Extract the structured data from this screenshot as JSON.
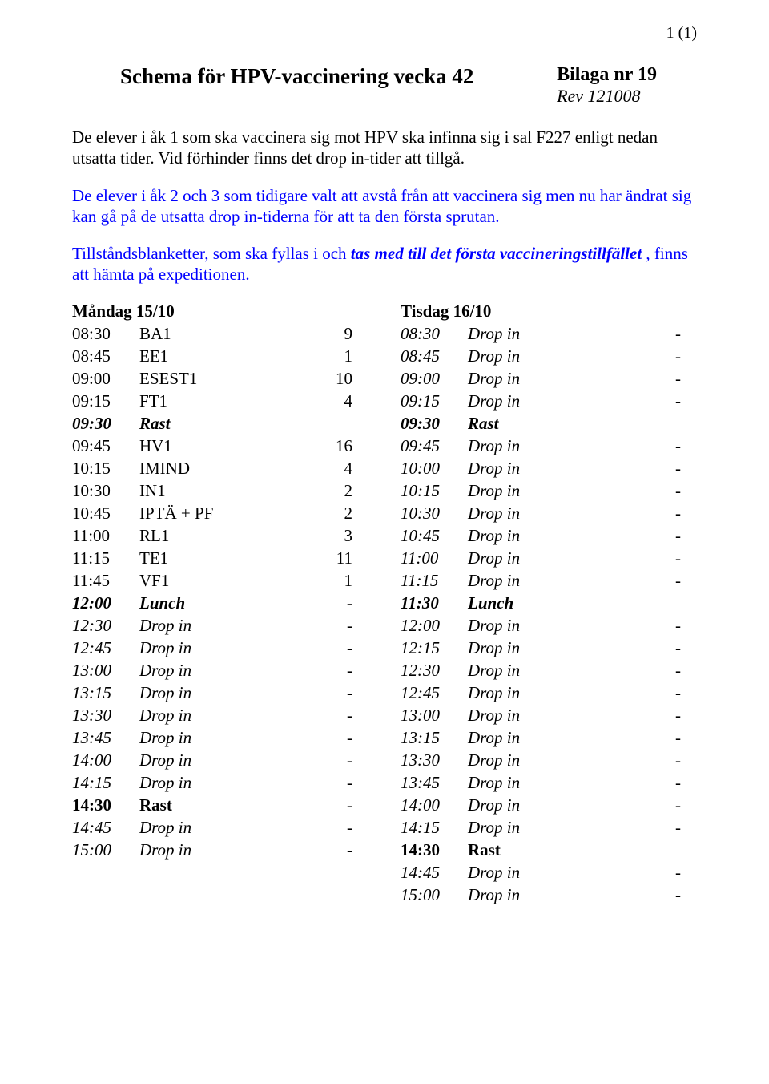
{
  "page_number": "1 (1)",
  "title": "Schema för HPV-vaccinering vecka 42",
  "bilaga_line1": "Bilaga nr 19",
  "bilaga_line2": "Rev 121008",
  "para1": "De elever i åk 1 som ska vaccinera sig mot HPV ska infinna sig i sal F227 enligt nedan utsatta tider. Vid förhinder finns det drop in-tider att tillgå.",
  "para2": "De elever i åk 2 och 3 som tidigare valt att avstå från att vaccinera sig men nu har ändrat sig kan gå på de utsatta drop in-tiderna för att ta den första sprutan.",
  "para3_pre": "Tillståndsblanketter, som ska fyllas i och ",
  "para3_em": "tas med till det första vaccineringstillfället",
  "para3_post": " , finns att hämta på expeditionen.",
  "left_heading": "Måndag 15/10",
  "right_heading": "Tisdag 16/10",
  "left_rows": [
    {
      "time": "08:30",
      "label": "BA1",
      "count": "9",
      "style": "n"
    },
    {
      "time": "08:45",
      "label": "EE1",
      "count": "1",
      "style": "n"
    },
    {
      "time": "09:00",
      "label": "ESEST1",
      "count": "10",
      "style": "n"
    },
    {
      "time": "09:15",
      "label": "FT1",
      "count": "4",
      "style": "n"
    },
    {
      "time": "09:30",
      "label": "Rast",
      "count": "",
      "style": "bi"
    },
    {
      "time": "09:45",
      "label": "HV1",
      "count": "16",
      "style": "n"
    },
    {
      "time": "10:15",
      "label": "IMIND",
      "count": "4",
      "style": "n"
    },
    {
      "time": "10:30",
      "label": "IN1",
      "count": "2",
      "style": "n"
    },
    {
      "time": "10:45",
      "label": "IPTÄ + PF",
      "count": "2",
      "style": "n"
    },
    {
      "time": "11:00",
      "label": "RL1",
      "count": "3",
      "style": "n"
    },
    {
      "time": "11:15",
      "label": "TE1",
      "count": "11",
      "style": "n"
    },
    {
      "time": "11:45",
      "label": "VF1",
      "count": "1",
      "style": "n"
    },
    {
      "time": "12:00",
      "label": "Lunch",
      "count": "-",
      "style": "bi"
    },
    {
      "time": "12:30",
      "label": "Drop in",
      "count": "-",
      "style": "i"
    },
    {
      "time": "12:45",
      "label": "Drop in",
      "count": "-",
      "style": "i"
    },
    {
      "time": "13:00",
      "label": "Drop in",
      "count": "-",
      "style": "i"
    },
    {
      "time": "13:15",
      "label": "Drop in",
      "count": "-",
      "style": "i"
    },
    {
      "time": "13:30",
      "label": "Drop in",
      "count": "-",
      "style": "i"
    },
    {
      "time": "13:45",
      "label": "Drop in",
      "count": "-",
      "style": "i"
    },
    {
      "time": "14:00",
      "label": "Drop in",
      "count": "-",
      "style": "i"
    },
    {
      "time": "14:15",
      "label": "Drop in",
      "count": "-",
      "style": "i"
    },
    {
      "time": "14:30",
      "label": "Rast",
      "count": "-",
      "style": "b"
    },
    {
      "time": "14:45",
      "label": "Drop in",
      "count": "-",
      "style": "i"
    },
    {
      "time": "15:00",
      "label": "Drop in",
      "count": "-",
      "style": "i"
    }
  ],
  "right_rows": [
    {
      "time": "08:30",
      "label": "Drop in",
      "count": "-",
      "style": "i"
    },
    {
      "time": "08:45",
      "label": "Drop in",
      "count": "-",
      "style": "i"
    },
    {
      "time": "09:00",
      "label": "Drop in",
      "count": "-",
      "style": "i"
    },
    {
      "time": "09:15",
      "label": "Drop in",
      "count": "-",
      "style": "i"
    },
    {
      "time": "09:30",
      "label": "Rast",
      "count": "",
      "style": "bi"
    },
    {
      "time": "09:45",
      "label": "Drop in",
      "count": "-",
      "style": "i"
    },
    {
      "time": "10:00",
      "label": "Drop in",
      "count": "-",
      "style": "i"
    },
    {
      "time": "10:15",
      "label": "Drop in",
      "count": "-",
      "style": "i"
    },
    {
      "time": "10:30",
      "label": "Drop in",
      "count": "-",
      "style": "i"
    },
    {
      "time": "10:45",
      "label": "Drop in",
      "count": "-",
      "style": "i"
    },
    {
      "time": "11:00",
      "label": "Drop in",
      "count": "-",
      "style": "i"
    },
    {
      "time": "11:15",
      "label": "Drop in",
      "count": "-",
      "style": "i"
    },
    {
      "time": "11:30",
      "label": "Lunch",
      "count": "",
      "style": "bi"
    },
    {
      "time": "12:00",
      "label": "Drop in",
      "count": "-",
      "style": "i"
    },
    {
      "time": "12:15",
      "label": "Drop in",
      "count": "-",
      "style": "i"
    },
    {
      "time": "12:30",
      "label": "Drop in",
      "count": "-",
      "style": "i"
    },
    {
      "time": "12:45",
      "label": "Drop in",
      "count": "-",
      "style": "i"
    },
    {
      "time": "13:00",
      "label": "Drop in",
      "count": "-",
      "style": "i"
    },
    {
      "time": "13:15",
      "label": "Drop in",
      "count": "-",
      "style": "i"
    },
    {
      "time": "13:30",
      "label": "Drop in",
      "count": "-",
      "style": "i"
    },
    {
      "time": "13:45",
      "label": "Drop in",
      "count": "-",
      "style": "i"
    },
    {
      "time": "14:00",
      "label": "Drop in",
      "count": "-",
      "style": "i"
    },
    {
      "time": "14:15",
      "label": "Drop in",
      "count": "-",
      "style": "i"
    },
    {
      "time": "14:30",
      "label": "Rast",
      "count": "",
      "style": "b"
    },
    {
      "time": "14:45",
      "label": "Drop in",
      "count": "-",
      "style": "i"
    },
    {
      "time": "15:00",
      "label": "Drop in",
      "count": "-",
      "style": "i"
    }
  ]
}
